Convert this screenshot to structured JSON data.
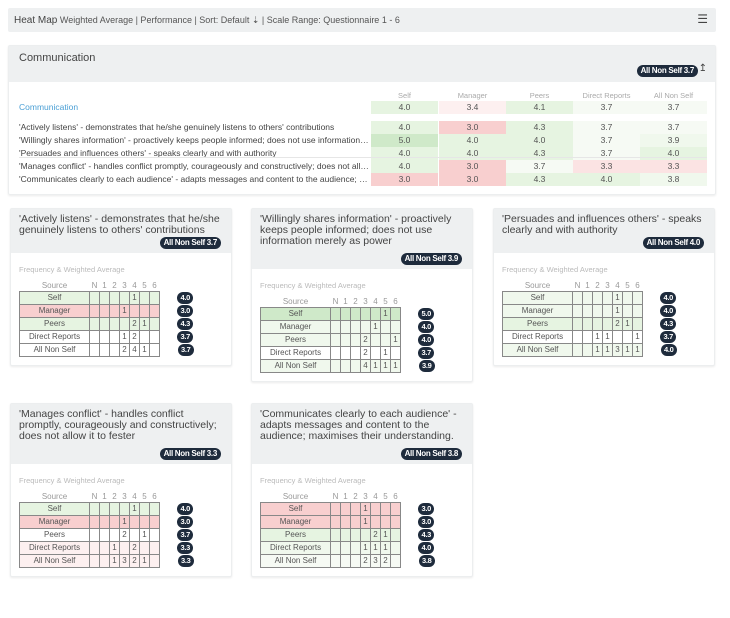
{
  "toolbar": {
    "title": "Heat Map",
    "subtitle": "Weighted Average | Performance | Sort: Default",
    "sort_icon": "sort-descending-icon",
    "scale": "| Scale Range: Questionnaire 1 - 6",
    "settings_icon": "sliders-icon"
  },
  "colors": {
    "pill": "#1e2b3c",
    "strong_green": "#cfe9c9",
    "green": "#e6f4e1",
    "red": "#f8cfcf",
    "light_red": "#fbe3e3",
    "link": "#4a9fd5"
  },
  "summary": {
    "title": "Communication",
    "badge": "All Non Self 3.7",
    "sort_icon": "arrow-up-icon",
    "columns": [
      "Self",
      "Manager",
      "Peers",
      "Direct Reports",
      "All Non Self"
    ],
    "category": {
      "label": "Communication",
      "values": [
        "4.0",
        "3.4",
        "4.1",
        "3.7",
        "3.7"
      ],
      "tones": [
        "g1",
        "r0",
        "g1",
        "n",
        "n"
      ]
    },
    "rows": [
      {
        "label": "'Actively listens' - demonstrates that he/she genuinely listens to others' contributions",
        "values": [
          "4.0",
          "3.0",
          "4.3",
          "3.7",
          "3.7"
        ],
        "tones": [
          "g1",
          "r2",
          "g1",
          "n",
          "n"
        ]
      },
      {
        "label": "'Willingly shares information' - proactively keeps people informed; does not use information merely as power",
        "values": [
          "5.0",
          "4.0",
          "4.0",
          "3.7",
          "3.9"
        ],
        "tones": [
          "g2",
          "g1",
          "g1",
          "n",
          "g0"
        ]
      },
      {
        "label": "'Persuades and influences others' - speaks clearly and with authority",
        "values": [
          "4.0",
          "4.0",
          "4.3",
          "3.7",
          "4.0"
        ],
        "tones": [
          "g1",
          "g1",
          "g1",
          "n",
          "g1"
        ]
      },
      {
        "label": "'Manages conflict' - handles conflict promptly, courageously and constructively; does not allow it to fester",
        "values": [
          "4.0",
          "3.0",
          "3.7",
          "3.3",
          "3.3"
        ],
        "tones": [
          "g1",
          "r2",
          "n",
          "r1",
          "r1"
        ]
      },
      {
        "label": "'Communicates clearly to each audience' - adapts messages and content to the audience; maximises their understanding.",
        "values": [
          "3.0",
          "3.0",
          "4.3",
          "4.0",
          "3.8"
        ],
        "tones": [
          "r2",
          "r2",
          "g1",
          "g1",
          "g0"
        ]
      }
    ]
  },
  "freq_header": {
    "label": "Frequency & Weighted Average",
    "source": "Source",
    "scale": [
      "N",
      "1",
      "2",
      "3",
      "4",
      "5",
      "6"
    ]
  },
  "cards": [
    {
      "title": "'Actively listens' - demonstrates that he/she genuinely listens to others' contributions",
      "badge": "All Non Self 3.7",
      "rows": [
        {
          "source": "Self",
          "counts": [
            "",
            "",
            "",
            "",
            "1",
            "",
            ""
          ],
          "avg": "4.0",
          "tone": "g1"
        },
        {
          "source": "Manager",
          "counts": [
            "",
            "",
            "",
            "1",
            "",
            "",
            ""
          ],
          "avg": "3.0",
          "tone": "r2"
        },
        {
          "source": "Peers",
          "counts": [
            "",
            "",
            "",
            "",
            "2",
            "1",
            ""
          ],
          "avg": "4.3",
          "tone": "g1"
        },
        {
          "source": "Direct Reports",
          "counts": [
            "",
            "",
            "",
            "1",
            "2",
            "",
            ""
          ],
          "avg": "3.7",
          "tone": "w"
        },
        {
          "source": "All Non Self",
          "counts": [
            "",
            "",
            "",
            "2",
            "4",
            "1",
            ""
          ],
          "avg": "3.7",
          "tone": "w"
        }
      ]
    },
    {
      "title": "'Willingly shares information' - proactively keeps people informed; does not use information merely as power",
      "badge": "All Non Self 3.9",
      "rows": [
        {
          "source": "Self",
          "counts": [
            "",
            "",
            "",
            "",
            "",
            "1",
            ""
          ],
          "avg": "5.0",
          "tone": "g2"
        },
        {
          "source": "Manager",
          "counts": [
            "",
            "",
            "",
            "",
            "1",
            "",
            ""
          ],
          "avg": "4.0",
          "tone": "g0"
        },
        {
          "source": "Peers",
          "counts": [
            "",
            "",
            "",
            "2",
            "",
            "",
            "1"
          ],
          "avg": "4.0",
          "tone": "g0"
        },
        {
          "source": "Direct Reports",
          "counts": [
            "",
            "",
            "",
            "2",
            "",
            "1",
            ""
          ],
          "avg": "3.7",
          "tone": "w"
        },
        {
          "source": "All Non Self",
          "counts": [
            "",
            "",
            "",
            "4",
            "1",
            "1",
            "1"
          ],
          "avg": "3.9",
          "tone": "g0"
        }
      ]
    },
    {
      "title": "'Persuades and influences others' - speaks clearly and with authority",
      "badge": "All Non Self 4.0",
      "rows": [
        {
          "source": "Self",
          "counts": [
            "",
            "",
            "",
            "",
            "1",
            "",
            ""
          ],
          "avg": "4.0",
          "tone": "g0"
        },
        {
          "source": "Manager",
          "counts": [
            "",
            "",
            "",
            "",
            "1",
            "",
            ""
          ],
          "avg": "4.0",
          "tone": "g0"
        },
        {
          "source": "Peers",
          "counts": [
            "",
            "",
            "",
            "",
            "2",
            "1",
            ""
          ],
          "avg": "4.3",
          "tone": "g1"
        },
        {
          "source": "Direct Reports",
          "counts": [
            "",
            "",
            "1",
            "1",
            "",
            "",
            "1"
          ],
          "avg": "3.7",
          "tone": "w"
        },
        {
          "source": "All Non Self",
          "counts": [
            "",
            "",
            "1",
            "1",
            "3",
            "1",
            "1"
          ],
          "avg": "4.0",
          "tone": "g0"
        }
      ]
    },
    {
      "title": "'Manages conflict' - handles conflict promptly, courageously and constructively; does not allow it to fester",
      "badge": "All Non Self 3.3",
      "rows": [
        {
          "source": "Self",
          "counts": [
            "",
            "",
            "",
            "",
            "1",
            "",
            ""
          ],
          "avg": "4.0",
          "tone": "g1"
        },
        {
          "source": "Manager",
          "counts": [
            "",
            "",
            "",
            "1",
            "",
            "",
            ""
          ],
          "avg": "3.0",
          "tone": "r2"
        },
        {
          "source": "Peers",
          "counts": [
            "",
            "",
            "",
            "2",
            "",
            "1",
            ""
          ],
          "avg": "3.7",
          "tone": "w"
        },
        {
          "source": "Direct Reports",
          "counts": [
            "",
            "",
            "1",
            "",
            "2",
            "",
            ""
          ],
          "avg": "3.3",
          "tone": "r0"
        },
        {
          "source": "All Non Self",
          "counts": [
            "",
            "",
            "1",
            "3",
            "2",
            "1",
            ""
          ],
          "avg": "3.3",
          "tone": "r0"
        }
      ]
    },
    {
      "title": "'Communicates clearly to each audience' - adapts messages and content to the audience; maximises their understanding.",
      "badge": "All Non Self 3.8",
      "rows": [
        {
          "source": "Self",
          "counts": [
            "",
            "",
            "",
            "1",
            "",
            "",
            ""
          ],
          "avg": "3.0",
          "tone": "r2"
        },
        {
          "source": "Manager",
          "counts": [
            "",
            "",
            "",
            "1",
            "",
            "",
            ""
          ],
          "avg": "3.0",
          "tone": "r2"
        },
        {
          "source": "Peers",
          "counts": [
            "",
            "",
            "",
            "",
            "2",
            "1",
            ""
          ],
          "avg": "4.3",
          "tone": "g1"
        },
        {
          "source": "Direct Reports",
          "counts": [
            "",
            "",
            "",
            "1",
            "1",
            "1",
            ""
          ],
          "avg": "4.0",
          "tone": "g0"
        },
        {
          "source": "All Non Self",
          "counts": [
            "",
            "",
            "",
            "2",
            "3",
            "2",
            ""
          ],
          "avg": "3.8",
          "tone": "n"
        }
      ]
    }
  ]
}
